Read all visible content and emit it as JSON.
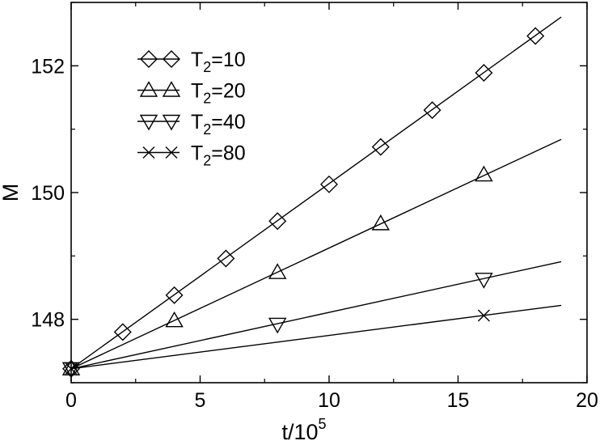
{
  "chart_data": {
    "type": "line",
    "xlabel": "t/10",
    "xlabel_exponent": "5",
    "ylabel": "M",
    "xlim": [
      0,
      20
    ],
    "ylim": [
      147.0,
      153.0
    ],
    "xticks": [
      0,
      5,
      10,
      15,
      20
    ],
    "yticks": [
      148,
      150,
      152
    ],
    "legend_position": "top-left",
    "grid": false,
    "series": [
      {
        "name": "T",
        "name_sub": "2",
        "name_suffix": "=10",
        "marker": "diamond",
        "x": [
          0,
          2,
          4,
          6,
          8,
          10,
          12,
          14,
          16,
          18
        ],
        "y": [
          147.22,
          147.8,
          148.38,
          148.96,
          149.55,
          150.13,
          150.72,
          151.3,
          151.89,
          152.47
        ],
        "fit": {
          "x": [
            0,
            19
          ],
          "y": [
            147.22,
            152.77
          ]
        }
      },
      {
        "name": "T",
        "name_sub": "2",
        "name_suffix": "=20",
        "marker": "triangle-up",
        "x": [
          0,
          4,
          8,
          12,
          16
        ],
        "y": [
          147.22,
          147.98,
          148.74,
          149.51,
          150.28
        ],
        "fit": {
          "x": [
            0,
            19
          ],
          "y": [
            147.22,
            150.84
          ]
        }
      },
      {
        "name": "T",
        "name_sub": "2",
        "name_suffix": "=40",
        "marker": "triangle-down",
        "x": [
          0,
          8,
          16
        ],
        "y": [
          147.22,
          147.92,
          148.63
        ],
        "fit": {
          "x": [
            0,
            19
          ],
          "y": [
            147.22,
            148.91
          ]
        }
      },
      {
        "name": "T",
        "name_sub": "2",
        "name_suffix": "=80",
        "marker": "x",
        "x": [
          0,
          16
        ],
        "y": [
          147.22,
          148.06
        ],
        "fit": {
          "x": [
            0,
            19
          ],
          "y": [
            147.22,
            148.22
          ]
        }
      }
    ]
  }
}
